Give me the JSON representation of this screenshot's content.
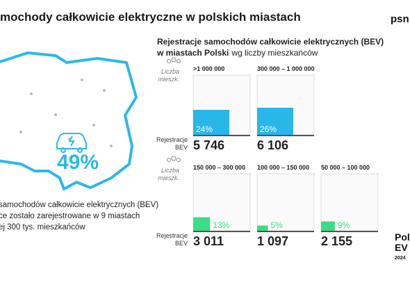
{
  "header": {
    "title": "mochody całkowicie elektryczne w polskich miastach",
    "logo": "psn"
  },
  "summary": {
    "percent": "49%",
    "lines": [
      "samochodów całkowicie elektrycznych (BEV)",
      "ce zostało zarejestrowane w 9 miastach",
      "ej 300 tys. mieszkańców"
    ]
  },
  "panel": {
    "title_line1": "Rejestracje samochodów całkowicie elektrycznych (BEV)",
    "title_line2_bold": "w miastach Polski",
    "title_line2_rest": "wg liczby mieszkańców",
    "population_label": [
      "Liczba",
      "mieszk."
    ],
    "registrations_label": [
      "Rejestracje",
      "BEV"
    ],
    "groups": [
      {
        "range": ">1 000 000",
        "share": 24,
        "share_label": "24%",
        "count": "5 746"
      },
      {
        "range": "300 000 – 1 000 000",
        "share": 26,
        "share_label": "26%",
        "count": "6 106"
      },
      {
        "range": "150 000 – 300 000",
        "share": 13,
        "share_label": "13%",
        "count": "3 011"
      },
      {
        "range": "100 000 – 150 000",
        "share": 5,
        "share_label": "5%",
        "count": "1 097"
      },
      {
        "range": "50 000 – 100 000",
        "share": 9,
        "share_label": "9%",
        "count": "2 155"
      }
    ]
  },
  "footer": {
    "lines": [
      "Polis",
      "EV O",
      "2024"
    ]
  }
}
